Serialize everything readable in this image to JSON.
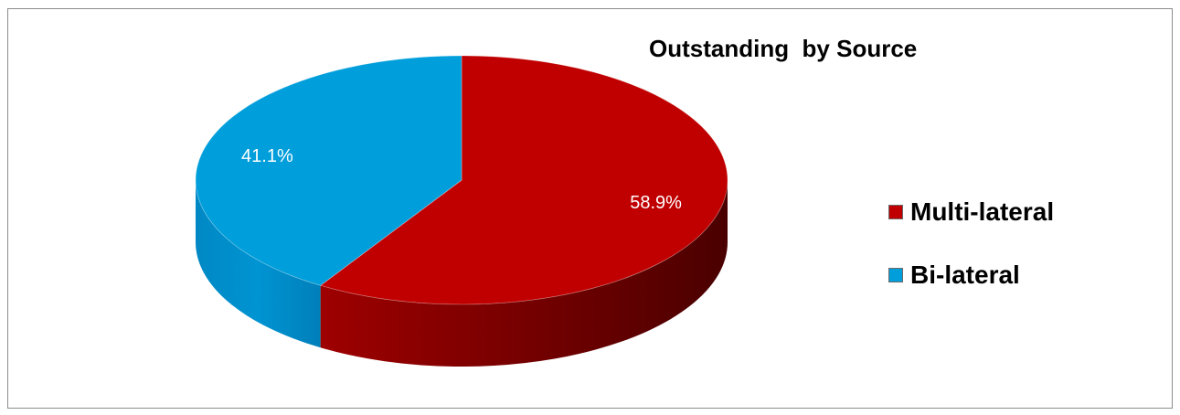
{
  "chart_data": {
    "type": "pie",
    "title": "Outstanding  by Source",
    "style": "3d",
    "legend_position": "right",
    "slices": [
      {
        "label": "Multi-lateral",
        "value": 58.9,
        "display": "58.9%",
        "color": "#C00000"
      },
      {
        "label": "Bi-lateral",
        "value": 41.1,
        "display": "41.1%",
        "color": "#009EDB"
      }
    ]
  }
}
